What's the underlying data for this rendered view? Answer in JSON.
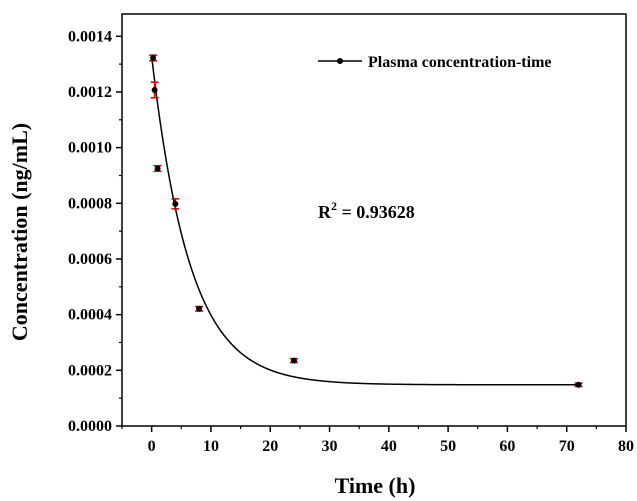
{
  "chart_data": {
    "type": "scatter",
    "xlabel": "Time (h)",
    "ylabel": "Concentration (ng/mL)",
    "xlim": [
      -5,
      80
    ],
    "ylim": [
      0,
      0.00148
    ],
    "xticks": [
      0,
      10,
      20,
      30,
      40,
      50,
      60,
      70,
      80
    ],
    "xtick_labels": [
      "0",
      "10",
      "20",
      "30",
      "40",
      "50",
      "60",
      "70",
      "80"
    ],
    "yticks": [
      0,
      0.0002,
      0.0004,
      0.0006,
      0.0008,
      0.001,
      0.0012,
      0.0014
    ],
    "ytick_labels": [
      "0.0000",
      "0.0002",
      "0.0004",
      "0.0006",
      "0.0008",
      "0.0010",
      "0.0012",
      "0.0014"
    ],
    "grid": false,
    "legend_position": "top-right",
    "series": [
      {
        "name": "Plasma concentration-time",
        "color": "#000000",
        "marker_color": "#000000",
        "error_color": "#cc0000",
        "x": [
          0.25,
          0.5,
          1,
          4,
          8,
          24,
          72
        ],
        "y": [
          0.001322,
          0.001207,
          0.000925,
          0.000798,
          0.000421,
          0.000235,
          0.000148
        ],
        "error": [
          1e-05,
          2.8e-05,
          1e-05,
          1.8e-05,
          8e-06,
          7e-06,
          6e-06
        ]
      }
    ],
    "fit": {
      "model": "exponential",
      "y0": 0.000148,
      "A": 0.00118,
      "k": 0.155,
      "color": "#000000"
    },
    "annotation": {
      "prefix": "R",
      "sup": "2",
      "suffix": " = 0.93628"
    }
  }
}
